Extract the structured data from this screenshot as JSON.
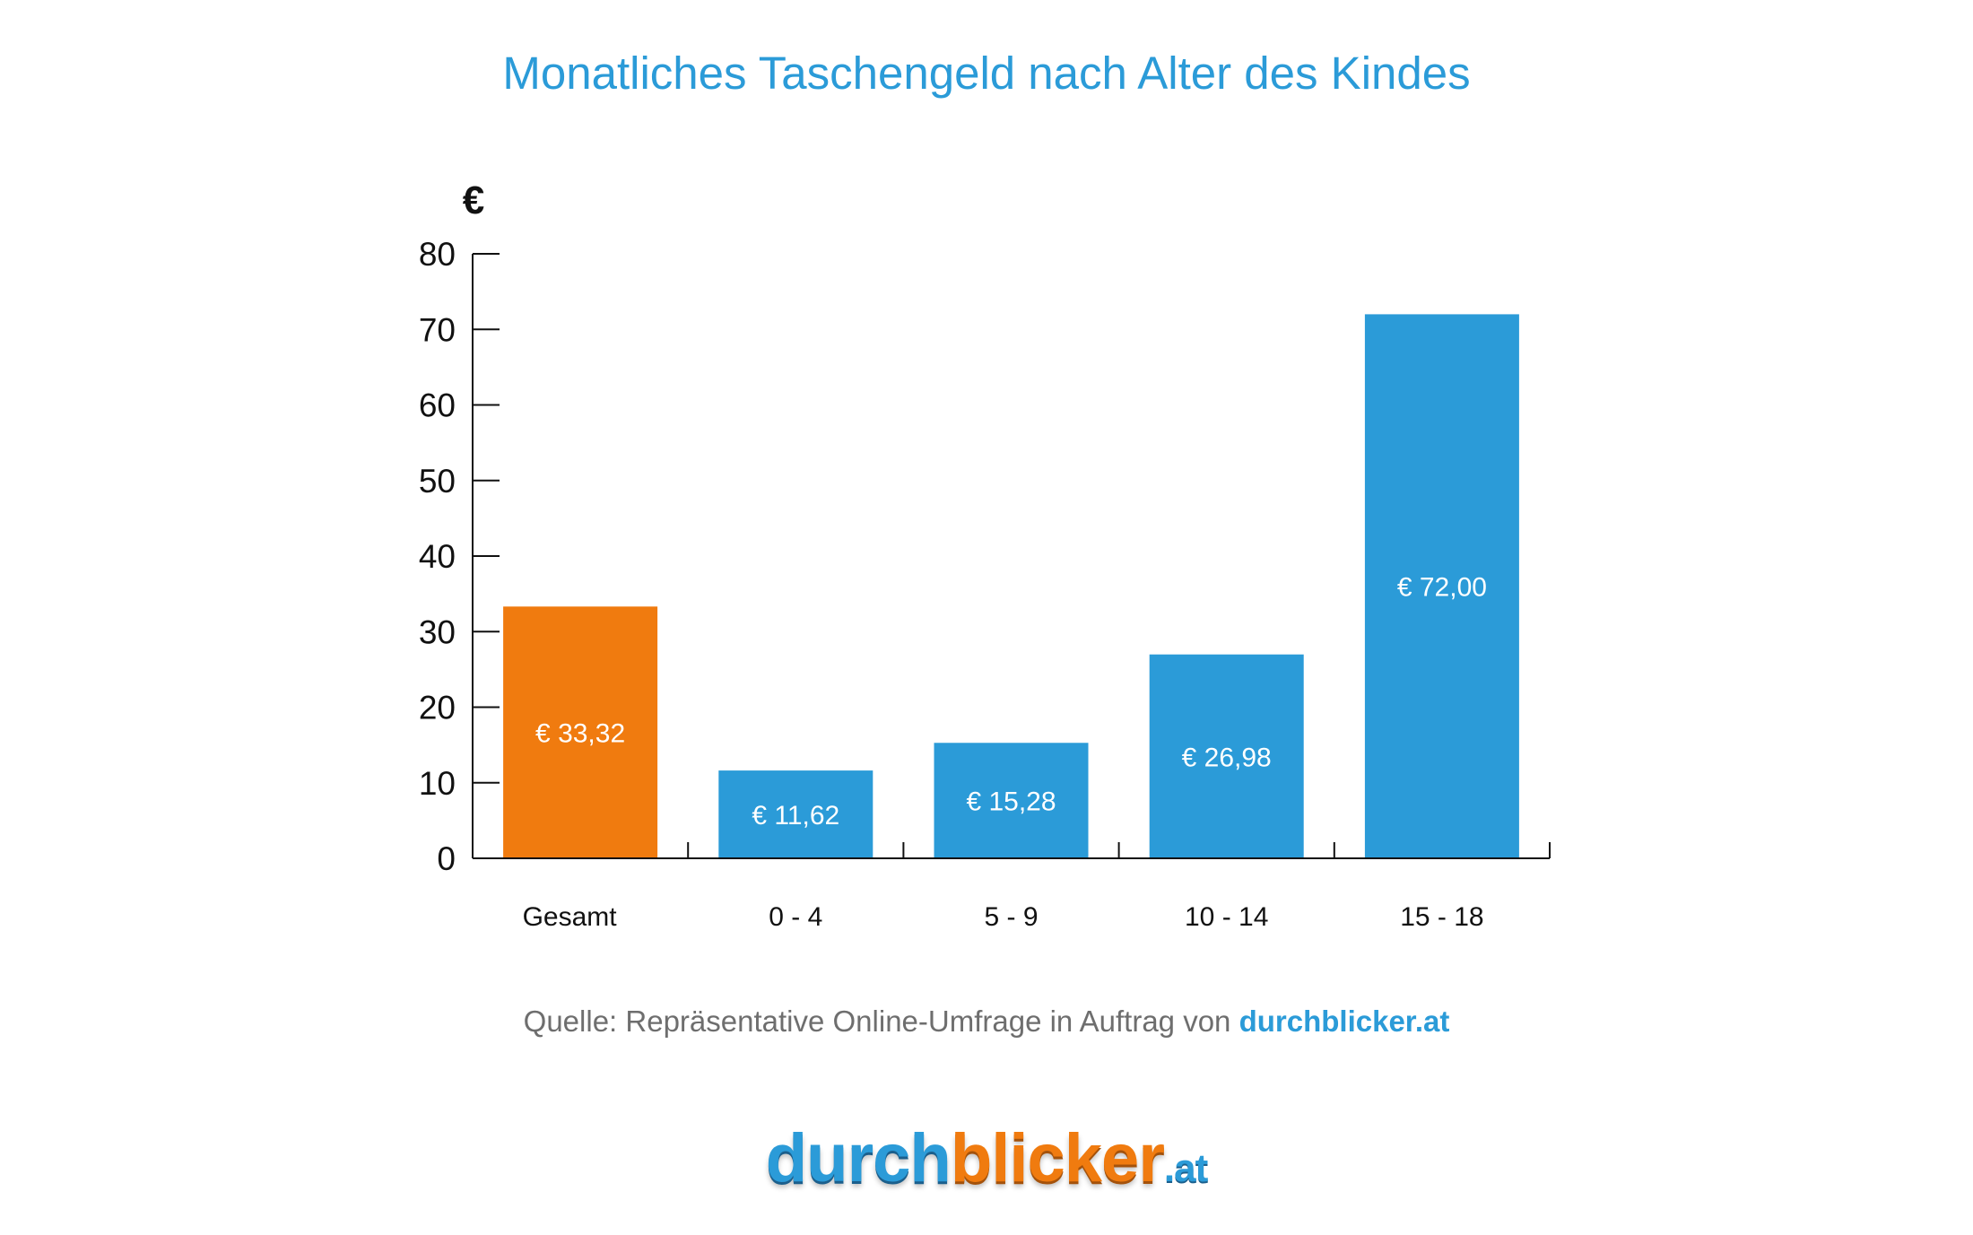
{
  "title": "Monatliches Taschengeld nach Alter des Kindes",
  "source": {
    "prefix": "Quelle: Repräsentative Online-Umfrage in Auftrag von ",
    "link": "durchblicker.at"
  },
  "logo": {
    "part1": "durch",
    "part2": "blicker",
    "part3": ".at"
  },
  "colors": {
    "title": "#2b9bd8",
    "bar_primary": "#2b9bd8",
    "bar_highlight": "#f07b0f",
    "axis": "#111111"
  },
  "chart_data": {
    "type": "bar",
    "title": "Monatliches Taschengeld nach Alter des Kindes",
    "ylabel": "€",
    "xlabel": "",
    "ylim": [
      0,
      80
    ],
    "yticks": [
      "0",
      "10",
      "20",
      "30",
      "40",
      "50",
      "60",
      "70",
      "80"
    ],
    "categories": [
      "Gesamt",
      "0 - 4",
      "5 - 9",
      "10 - 14",
      "15 - 18"
    ],
    "values": [
      33.32,
      11.62,
      15.28,
      26.98,
      72.0
    ],
    "value_labels": [
      "€ 33,32",
      "€ 11,62",
      "€ 15,28",
      "€ 26,98",
      "€ 72,00"
    ],
    "bar_colors": [
      "#f07b0f",
      "#2b9bd8",
      "#2b9bd8",
      "#2b9bd8",
      "#2b9bd8"
    ],
    "grid": false,
    "legend": "none"
  }
}
